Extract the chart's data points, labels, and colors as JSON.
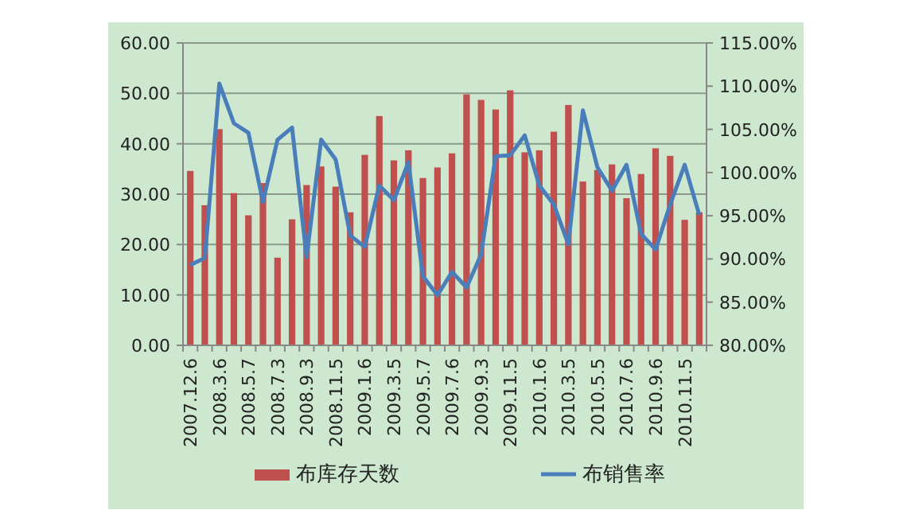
{
  "chart_data": {
    "type": "bar",
    "categories": [
      "2007.12.6",
      null,
      "2008.3.6",
      null,
      "2008.5.7",
      null,
      "2008.7.3",
      null,
      "2008.9.3",
      null,
      "2008.11.5",
      null,
      "2009.1.6",
      null,
      "2009.3.5",
      null,
      "2009.5.7",
      null,
      "2009.7.6",
      null,
      "2009.9.3",
      null,
      "2009.11.5",
      null,
      "2010.1.6",
      null,
      "2010.3.5",
      null,
      "2010.5.5",
      null,
      "2010.7.6",
      null,
      "2010.9.6",
      null,
      "2010.11.5",
      null
    ],
    "series": [
      {
        "name": "布库存天数",
        "color": "#c0504d",
        "values": [
          34.6,
          27.8,
          42.9,
          30.2,
          25.8,
          32.2,
          17.4,
          25.0,
          31.8,
          35.5,
          31.5,
          26.4,
          37.8,
          45.5,
          36.7,
          38.7,
          33.2,
          35.3,
          38.1,
          49.8,
          48.7,
          46.8,
          50.6,
          38.3,
          38.7,
          42.4,
          47.7,
          32.5,
          34.8,
          35.9,
          29.2,
          34.0,
          39.1,
          37.6,
          24.9,
          26.4
        ]
      },
      {
        "name": "布销售率",
        "type": "line",
        "axis": "y2",
        "color": "#4a7ebb",
        "values": [
          89.3,
          90.1,
          110.3,
          105.7,
          104.6,
          96.6,
          103.8,
          105.2,
          90.2,
          103.8,
          101.5,
          92.7,
          91.4,
          98.5,
          96.8,
          101.2,
          88.0,
          85.8,
          88.5,
          86.7,
          90.5,
          101.9,
          102.0,
          104.3,
          98.5,
          96.3,
          91.7,
          107.2,
          100.6,
          97.9,
          100.9,
          92.9,
          91.1,
          96.3,
          100.9,
          95.1
        ]
      }
    ],
    "ylim": [
      0,
      60
    ],
    "yticks": [
      {
        "value": 0,
        "label": "0.00"
      },
      {
        "value": 10,
        "label": "10.00"
      },
      {
        "value": 20,
        "label": "20.00"
      },
      {
        "value": 30,
        "label": "30.00"
      },
      {
        "value": 40,
        "label": "40.00"
      },
      {
        "value": 50,
        "label": "50.00"
      },
      {
        "value": 60,
        "label": "60.00"
      }
    ],
    "y2lim": [
      80,
      115
    ],
    "y2ticks": [
      {
        "value": 80,
        "label": "80.00%"
      },
      {
        "value": 85,
        "label": "85.00%"
      },
      {
        "value": 90,
        "label": "90.00%"
      },
      {
        "value": 95,
        "label": "95.00%"
      },
      {
        "value": 100,
        "label": "100.00%"
      },
      {
        "value": 105,
        "label": "105.00%"
      },
      {
        "value": 110,
        "label": "110.00%"
      },
      {
        "value": 115,
        "label": "115.00%"
      }
    ],
    "grid": "y",
    "legend": "bottom"
  }
}
